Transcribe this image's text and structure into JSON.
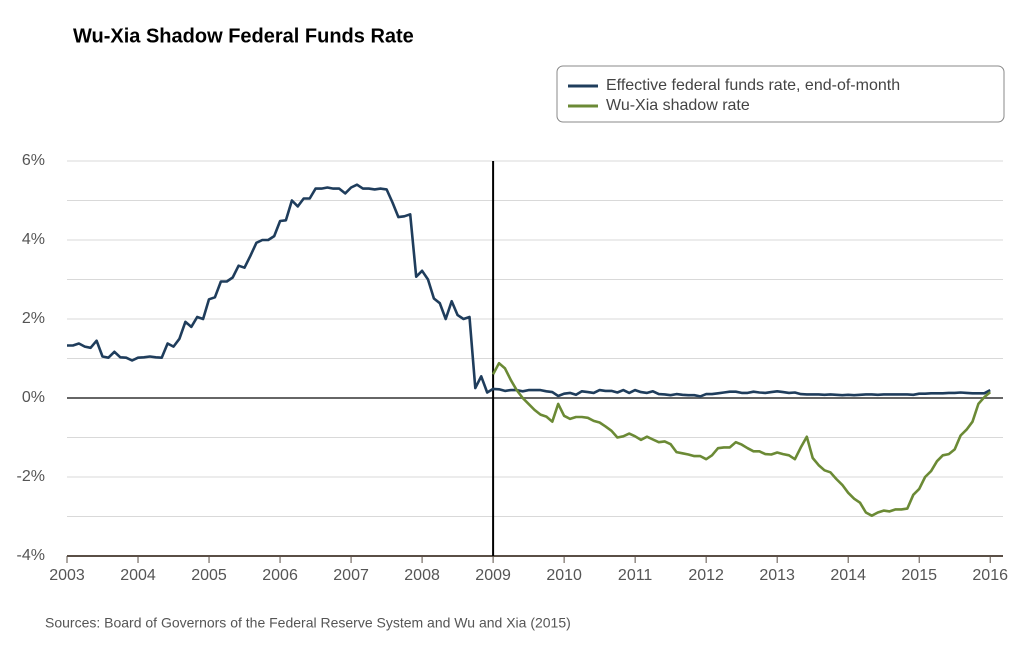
{
  "chart_data": {
    "type": "line",
    "title": "Wu-Xia Shadow Federal Funds Rate",
    "source": "Sources: Board of Governors of the Federal Reserve System and Wu and Xia (2015)",
    "x": [
      2003,
      2003.083,
      2003.167,
      2003.25,
      2003.333,
      2003.417,
      2003.5,
      2003.583,
      2003.667,
      2003.75,
      2003.833,
      2003.917,
      2004,
      2004.083,
      2004.167,
      2004.25,
      2004.333,
      2004.417,
      2004.5,
      2004.583,
      2004.667,
      2004.75,
      2004.833,
      2004.917,
      2005,
      2005.083,
      2005.167,
      2005.25,
      2005.333,
      2005.417,
      2005.5,
      2005.583,
      2005.667,
      2005.75,
      2005.833,
      2005.917,
      2006,
      2006.083,
      2006.167,
      2006.25,
      2006.333,
      2006.417,
      2006.5,
      2006.583,
      2006.667,
      2006.75,
      2006.833,
      2006.917,
      2007,
      2007.083,
      2007.167,
      2007.25,
      2007.333,
      2007.417,
      2007.5,
      2007.583,
      2007.667,
      2007.75,
      2007.833,
      2007.917,
      2008,
      2008.083,
      2008.167,
      2008.25,
      2008.333,
      2008.417,
      2008.5,
      2008.583,
      2008.667,
      2008.75,
      2008.833,
      2008.917,
      2009,
      2009.083,
      2009.167,
      2009.25,
      2009.333,
      2009.417,
      2009.5,
      2009.583,
      2009.667,
      2009.75,
      2009.833,
      2009.917,
      2010,
      2010.083,
      2010.167,
      2010.25,
      2010.333,
      2010.417,
      2010.5,
      2010.583,
      2010.667,
      2010.75,
      2010.833,
      2010.917,
      2011,
      2011.083,
      2011.167,
      2011.25,
      2011.333,
      2011.417,
      2011.5,
      2011.583,
      2011.667,
      2011.75,
      2011.833,
      2011.917,
      2012,
      2012.083,
      2012.167,
      2012.25,
      2012.333,
      2012.417,
      2012.5,
      2012.583,
      2012.667,
      2012.75,
      2012.833,
      2012.917,
      2013,
      2013.083,
      2013.167,
      2013.25,
      2013.333,
      2013.417,
      2013.5,
      2013.583,
      2013.667,
      2013.75,
      2013.833,
      2013.917,
      2014,
      2014.083,
      2014.167,
      2014.25,
      2014.333,
      2014.417,
      2014.5,
      2014.583,
      2014.667,
      2014.75,
      2014.833,
      2014.917,
      2015,
      2015.083,
      2015.167,
      2015.25,
      2015.333,
      2015.417,
      2015.5,
      2015.583,
      2015.667,
      2015.75,
      2015.833,
      2015.917,
      2016
    ],
    "series": [
      {
        "name": "Effective federal funds rate, end-of-month",
        "color": "#1f3d5c",
        "values": [
          1.33,
          1.33,
          1.38,
          1.3,
          1.27,
          1.45,
          1.05,
          1.02,
          1.17,
          1.03,
          1.02,
          0.95,
          1.02,
          1.03,
          1.05,
          1.03,
          1.02,
          1.38,
          1.3,
          1.5,
          1.93,
          1.8,
          2.05,
          2.0,
          2.5,
          2.55,
          2.95,
          2.95,
          3.05,
          3.35,
          3.3,
          3.6,
          3.93,
          4.0,
          4.0,
          4.1,
          4.48,
          4.5,
          5.0,
          4.85,
          5.05,
          5.05,
          5.3,
          5.3,
          5.33,
          5.3,
          5.3,
          5.18,
          5.33,
          5.4,
          5.3,
          5.3,
          5.28,
          5.3,
          5.28,
          4.95,
          4.58,
          4.6,
          4.65,
          3.07,
          3.22,
          3.0,
          2.52,
          2.4,
          2.0,
          2.45,
          2.1,
          2.0,
          2.05,
          0.25,
          0.55,
          0.14,
          0.23,
          0.22,
          0.18,
          0.2,
          0.2,
          0.17,
          0.2,
          0.2,
          0.2,
          0.17,
          0.15,
          0.05,
          0.11,
          0.13,
          0.08,
          0.17,
          0.15,
          0.13,
          0.2,
          0.18,
          0.18,
          0.14,
          0.2,
          0.13,
          0.2,
          0.15,
          0.13,
          0.17,
          0.1,
          0.09,
          0.07,
          0.1,
          0.08,
          0.07,
          0.07,
          0.04,
          0.1,
          0.1,
          0.12,
          0.14,
          0.16,
          0.16,
          0.13,
          0.13,
          0.16,
          0.14,
          0.13,
          0.15,
          0.17,
          0.15,
          0.13,
          0.14,
          0.1,
          0.09,
          0.09,
          0.09,
          0.08,
          0.09,
          0.08,
          0.07,
          0.08,
          0.07,
          0.08,
          0.09,
          0.09,
          0.08,
          0.09,
          0.09,
          0.09,
          0.09,
          0.09,
          0.08,
          0.11,
          0.11,
          0.12,
          0.12,
          0.12,
          0.13,
          0.13,
          0.14,
          0.13,
          0.12,
          0.12,
          0.12,
          0.2
        ]
      },
      {
        "name": "Wu-Xia shadow rate",
        "color": "#6b8a35",
        "values": [
          null,
          null,
          null,
          null,
          null,
          null,
          null,
          null,
          null,
          null,
          null,
          null,
          null,
          null,
          null,
          null,
          null,
          null,
          null,
          null,
          null,
          null,
          null,
          null,
          null,
          null,
          null,
          null,
          null,
          null,
          null,
          null,
          null,
          null,
          null,
          null,
          null,
          null,
          null,
          null,
          null,
          null,
          null,
          null,
          null,
          null,
          null,
          null,
          null,
          null,
          null,
          null,
          null,
          null,
          null,
          null,
          null,
          null,
          null,
          null,
          null,
          null,
          null,
          null,
          null,
          null,
          null,
          null,
          null,
          null,
          null,
          null,
          0.6,
          0.88,
          0.75,
          0.45,
          0.2,
          0.0,
          -0.15,
          -0.3,
          -0.42,
          -0.47,
          -0.6,
          -0.15,
          -0.45,
          -0.53,
          -0.48,
          -0.48,
          -0.5,
          -0.58,
          -0.62,
          -0.72,
          -0.83,
          -1.0,
          -0.97,
          -0.9,
          -0.97,
          -1.06,
          -0.98,
          -1.05,
          -1.12,
          -1.1,
          -1.17,
          -1.37,
          -1.4,
          -1.43,
          -1.47,
          -1.47,
          -1.55,
          -1.45,
          -1.27,
          -1.25,
          -1.25,
          -1.12,
          -1.18,
          -1.27,
          -1.35,
          -1.35,
          -1.42,
          -1.43,
          -1.38,
          -1.42,
          -1.45,
          -1.55,
          -1.25,
          -0.98,
          -1.52,
          -1.7,
          -1.83,
          -1.88,
          -2.05,
          -2.2,
          -2.4,
          -2.55,
          -2.65,
          -2.9,
          -2.98,
          -2.9,
          -2.85,
          -2.87,
          -2.82,
          -2.82,
          -2.8,
          -2.45,
          -2.3,
          -2.0,
          -1.85,
          -1.6,
          -1.45,
          -1.42,
          -1.3,
          -0.95,
          -0.8,
          -0.6,
          -0.15,
          0.02,
          0.15
        ]
      }
    ],
    "xlim": [
      2003,
      2016.18
    ],
    "xticks": [
      2003,
      2004,
      2005,
      2006,
      2007,
      2008,
      2009,
      2010,
      2011,
      2012,
      2013,
      2014,
      2015,
      2016
    ],
    "ylim": [
      -4,
      6
    ],
    "yticks": [
      {
        "value": 6,
        "label": "6%"
      },
      {
        "value": 4,
        "label": "4%"
      },
      {
        "value": 2,
        "label": "2%"
      },
      {
        "value": 0,
        "label": "0%"
      },
      {
        "value": -2,
        "label": "-2%"
      },
      {
        "value": -4,
        "label": "-4%"
      }
    ],
    "minor_yticks": [
      5,
      3,
      1,
      -1,
      -3
    ],
    "grid": true,
    "vline": 2009,
    "legend": "top-right"
  }
}
